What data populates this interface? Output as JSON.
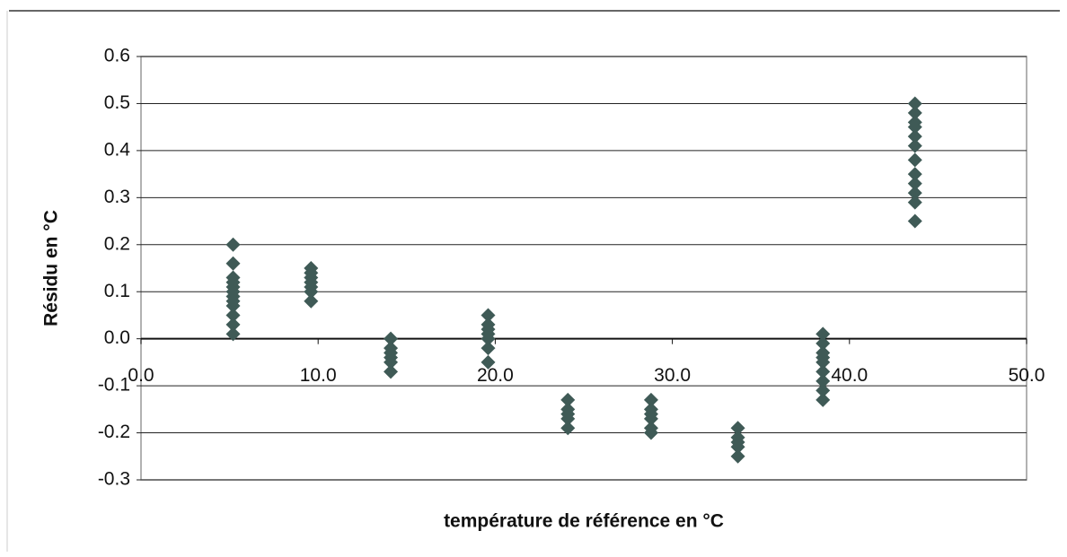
{
  "chart_data": {
    "type": "scatter",
    "xlabel": "température de référence en °C",
    "ylabel": "Résidu en °C",
    "xlim": [
      0,
      50
    ],
    "xticks": [
      {
        "value": 0,
        "label": "0.0"
      },
      {
        "value": 10,
        "label": "10.0"
      },
      {
        "value": 20,
        "label": "20.0"
      },
      {
        "value": 30,
        "label": "30.0"
      },
      {
        "value": 40,
        "label": "40.0"
      },
      {
        "value": 50,
        "label": "50.0"
      }
    ],
    "ylim": [
      -0.3,
      0.6
    ],
    "yticks": [
      -0.3,
      -0.2,
      -0.1,
      {
        "value": 0,
        "label": "0.0"
      },
      0.1,
      0.2,
      0.3,
      0.4,
      0.5,
      0.6
    ],
    "grid": true,
    "series": [
      {
        "color": "#3f5a56",
        "x": [
          5.2,
          5.2,
          5.2,
          5.2,
          5.2,
          5.2,
          5.2,
          5.2,
          5.2,
          5.2,
          5.2,
          5.2,
          9.6,
          9.6,
          9.6,
          9.6,
          9.6,
          9.6,
          9.6,
          14.1,
          14.1,
          14.1,
          14.1,
          14.1,
          14.1,
          19.6,
          19.6,
          19.6,
          19.6,
          19.6,
          19.6,
          19.6,
          24.1,
          24.1,
          24.1,
          24.1,
          24.1,
          28.8,
          28.8,
          28.8,
          28.8,
          28.8,
          28.8,
          33.7,
          33.7,
          33.7,
          33.7,
          33.7,
          38.5,
          38.5,
          38.5,
          38.5,
          38.5,
          38.5,
          38.5,
          38.5,
          38.5,
          43.7,
          43.7,
          43.7,
          43.7,
          43.7,
          43.7,
          43.7,
          43.7,
          43.7,
          43.7,
          43.7,
          43.7
        ],
        "values": [
          0.2,
          0.16,
          0.13,
          0.11,
          0.09,
          0.07,
          0.05,
          0.03,
          0.01,
          0.12,
          0.1,
          0.08,
          0.15,
          0.13,
          0.12,
          0.1,
          0.08,
          0.14,
          0.11,
          0,
          -0.02,
          -0.04,
          -0.05,
          -0.07,
          -0.03,
          0.05,
          0.03,
          0.01,
          0,
          -0.02,
          -0.05,
          0.02,
          -0.13,
          -0.15,
          -0.17,
          -0.19,
          -0.16,
          -0.13,
          -0.15,
          -0.17,
          -0.19,
          -0.2,
          -0.16,
          -0.19,
          -0.21,
          -0.23,
          -0.25,
          -0.22,
          0.01,
          -0.01,
          -0.03,
          -0.05,
          -0.07,
          -0.09,
          -0.11,
          -0.13,
          -0.04,
          0.5,
          0.48,
          0.46,
          0.43,
          0.41,
          0.38,
          0.35,
          0.33,
          0.31,
          0.29,
          0.25,
          0.45
        ]
      }
    ]
  }
}
